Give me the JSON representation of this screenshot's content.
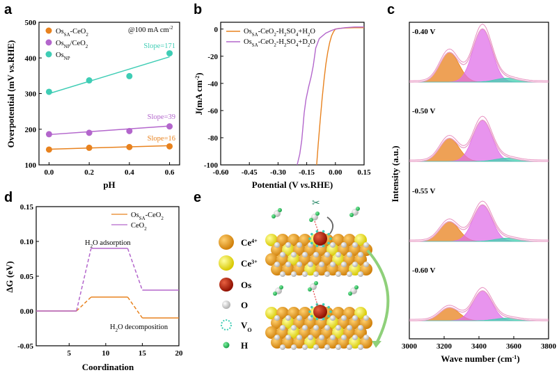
{
  "panels": {
    "a": "a",
    "b": "b",
    "c": "c",
    "d": "d",
    "e": "e"
  },
  "colors": {
    "orange": "#E8821E",
    "purple": "#B366CC",
    "teal": "#3FCDB5",
    "lightpurple": "#BB88DD",
    "pink": "#E8A0C8",
    "magenta": "#E070E8",
    "teal2": "#40D0B0"
  },
  "chart_data": [
    {
      "id": "a",
      "type": "scatter",
      "title": "@100 mA cm-2",
      "xlabel": "pH",
      "ylabel": "Overpotential (mV vs.RHE)",
      "xlim": [
        -0.05,
        0.65
      ],
      "ylim": [
        100,
        500
      ],
      "xticks": [
        "0.0",
        "0.2",
        "0.4",
        "0.6"
      ],
      "yticks": [
        "100",
        "200",
        "300",
        "400",
        "500"
      ],
      "series": [
        {
          "name": "OsSA-CeO2",
          "x": [
            0,
            0.2,
            0.4,
            0.6
          ],
          "y": [
            143,
            148,
            150,
            152
          ],
          "fit": [
            144,
            154
          ],
          "slope_label": "Slope=16"
        },
        {
          "name": "OsNP/CeO2",
          "x": [
            0,
            0.2,
            0.4,
            0.6
          ],
          "y": [
            186,
            190,
            195,
            208
          ],
          "fit": [
            185,
            209
          ],
          "slope_label": "Slope=39"
        },
        {
          "name": "OsNP",
          "x": [
            0,
            0.2,
            0.4,
            0.6
          ],
          "y": [
            305,
            337,
            349,
            413
          ],
          "fit": [
            300,
            403
          ],
          "slope_label": "Slope=171"
        }
      ]
    },
    {
      "id": "b",
      "type": "line",
      "xlabel": "Potential (V vs.RHE)",
      "ylabel": "J(mA cm-2)",
      "xlim": [
        -0.6,
        0.15
      ],
      "ylim": [
        -100,
        5
      ],
      "xticks": [
        "-0.60",
        "-0.45",
        "-0.30",
        "-0.15",
        "0.00",
        "0.15"
      ],
      "yticks": [
        "0",
        "-20",
        "-40",
        "-60",
        "-80",
        "-100"
      ],
      "series": [
        {
          "name": "OsSA-CeO2-H2SO4+H2O",
          "x": [
            -0.098,
            -0.09,
            -0.08,
            -0.07,
            -0.06,
            -0.05,
            -0.04,
            -0.03,
            -0.02,
            -0.01,
            0.0,
            0.02,
            0.05,
            0.1,
            0.15
          ],
          "y": [
            -100,
            -85,
            -68,
            -52,
            -38,
            -26,
            -17,
            -10,
            -5,
            -2,
            0,
            0.5,
            0.8,
            1,
            1
          ]
        },
        {
          "name": "OsSA-CeO2-H2SO4+D2O",
          "x": [
            -0.2,
            -0.19,
            -0.18,
            -0.17,
            -0.16,
            -0.15,
            -0.14,
            -0.13,
            -0.12,
            -0.11,
            -0.1,
            -0.08,
            -0.05,
            -0.02,
            0.0,
            0.05,
            0.1,
            0.15
          ],
          "y": [
            -100,
            -92,
            -82,
            -72,
            -62,
            -52,
            -43,
            -35,
            -27,
            -20,
            -14,
            -7,
            -3,
            -1,
            0,
            1,
            1.5,
            1.5
          ]
        }
      ]
    },
    {
      "id": "c",
      "type": "area",
      "xlabel": "Wave number (cm-1)",
      "ylabel": "Intensity (a.u.)",
      "xlim": [
        3000,
        3800
      ],
      "xticks": [
        "3000",
        "3200",
        "3400",
        "3600",
        "3800"
      ],
      "spectra": [
        {
          "label": "-0.40 V",
          "peaks": [
            {
              "center": 3230,
              "height": 0.45
            },
            {
              "center": 3420,
              "height": 0.8
            },
            {
              "center": 3560,
              "height": 0.06
            }
          ]
        },
        {
          "label": "-0.50 V",
          "peaks": [
            {
              "center": 3230,
              "height": 0.35
            },
            {
              "center": 3420,
              "height": 0.62
            },
            {
              "center": 3560,
              "height": 0.05
            }
          ]
        },
        {
          "label": "-0.55 V",
          "peaks": [
            {
              "center": 3230,
              "height": 0.3
            },
            {
              "center": 3420,
              "height": 0.55
            },
            {
              "center": 3560,
              "height": 0.05
            }
          ]
        },
        {
          "label": "-0.60 V",
          "peaks": [
            {
              "center": 3230,
              "height": 0.2
            },
            {
              "center": 3420,
              "height": 0.45
            },
            {
              "center": 3560,
              "height": 0.04
            }
          ]
        }
      ]
    },
    {
      "id": "d",
      "type": "line",
      "xlabel": "Coordination",
      "ylabel": "ΔG (eV)",
      "xlim": [
        0.5,
        20
      ],
      "ylim": [
        -0.05,
        0.15
      ],
      "xticks": [
        "5",
        "10",
        "15",
        "20"
      ],
      "yticks": [
        "-0.05",
        "0.00",
        "0.05",
        "0.10",
        "0.15"
      ],
      "annotations": [
        "H2O adsorption",
        "H2O decomposition"
      ],
      "series": [
        {
          "name": "OsSA-CeO2",
          "levels": [
            0.0,
            0.02,
            -0.01
          ]
        },
        {
          "name": "CeO2",
          "levels": [
            0.0,
            0.09,
            0.03
          ]
        }
      ]
    }
  ],
  "legend_e": [
    {
      "label": "Ce4+",
      "color": "#E8961C"
    },
    {
      "label": "Ce3+",
      "color": "#F0E020"
    },
    {
      "label": "Os",
      "color": "#B82010"
    },
    {
      "label": "O",
      "color": "#E8E8E8"
    },
    {
      "label": "Vo",
      "color": "#3FCDB5"
    },
    {
      "label": "H",
      "color": "#30C060"
    }
  ]
}
